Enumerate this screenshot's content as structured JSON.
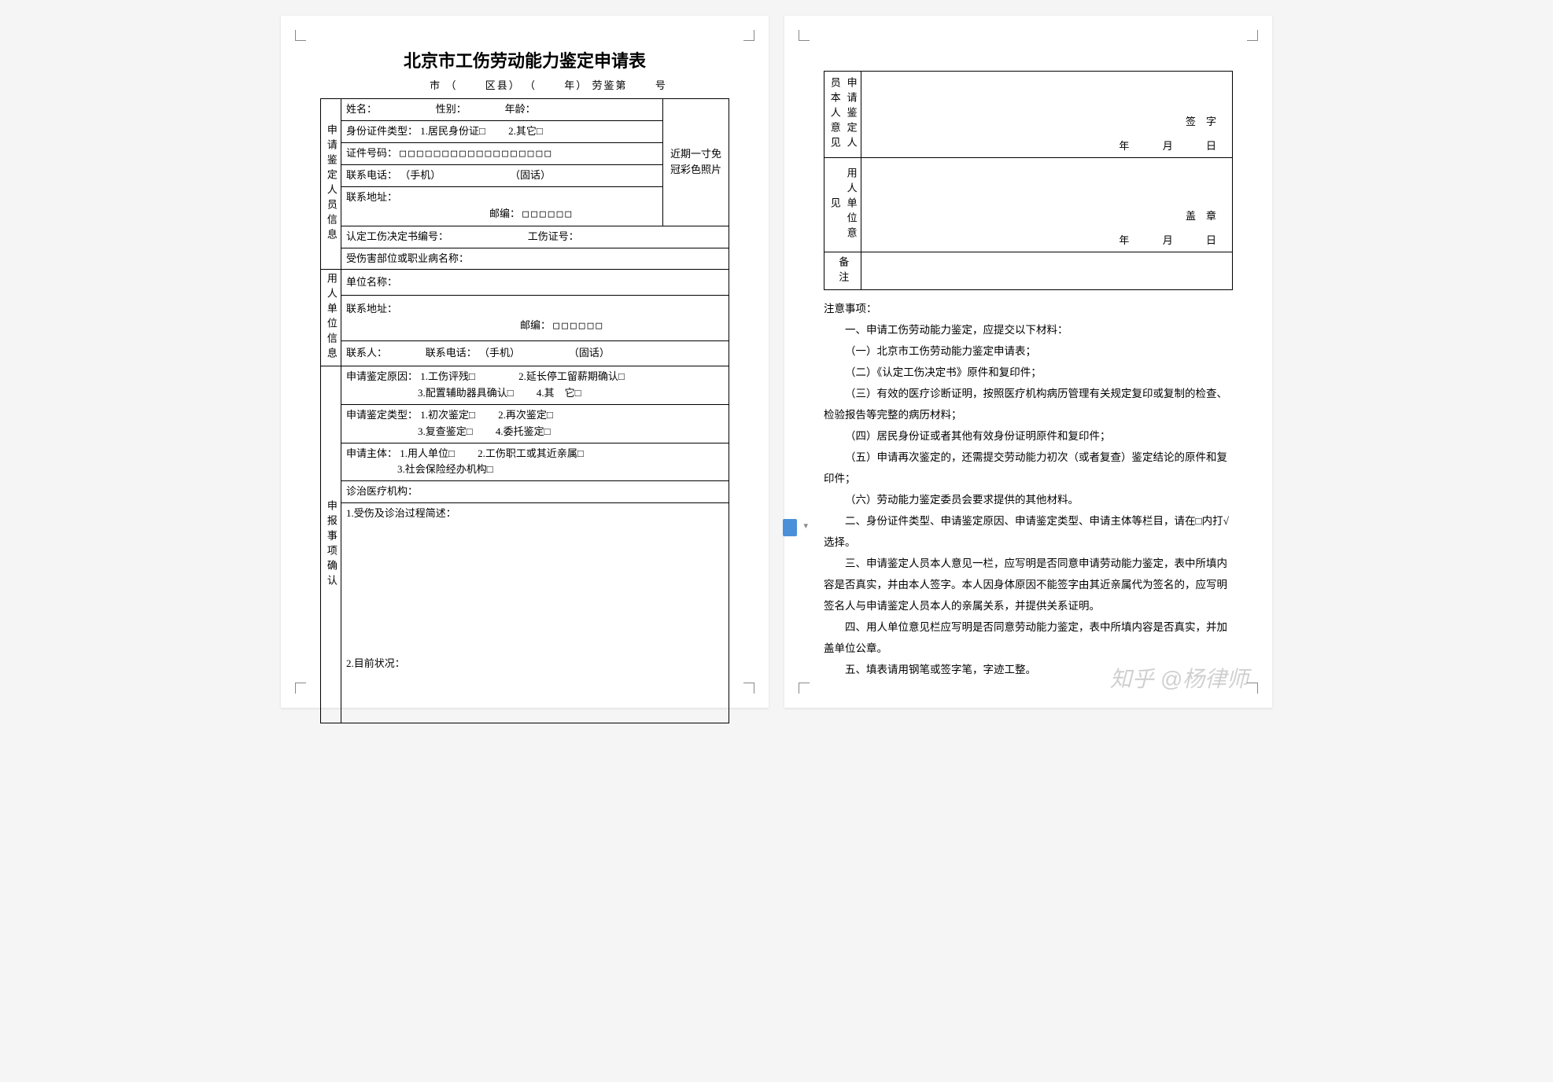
{
  "title": "北京市工伤劳动能力鉴定申请表",
  "subtitle_parts": {
    "city": "市",
    "p1": "（",
    "district": "区县）",
    "p2": "（",
    "year": "年）",
    "prefix": "劳鉴第",
    "suffix": "号"
  },
  "photo_text": "近期一寸免冠彩色照片",
  "section_labels": {
    "applicant": "申请鉴定人员信息",
    "employer": "用人单位信息",
    "matters": "申报事项确认",
    "applicant_opinion": "申请鉴定人员本人意见",
    "employer_opinion": "用人单位意见",
    "remarks": "备注"
  },
  "fields": {
    "name": "姓名：",
    "gender": "性别：",
    "age": "年龄：",
    "id_type": "身份证件类型：",
    "id_opt1": "1.居民身份证□",
    "id_opt2": "2.其它□",
    "id_no": "证件号码：",
    "id_boxes": "□□□□□□□□□□□□□□□□□□",
    "phone": "联系电话：",
    "mobile": "（手机）",
    "landline": "（固话）",
    "address": "联系地址：",
    "zip": "邮编：",
    "zip_boxes": "□□□□□□",
    "decision_no": "认定工伤决定书编号：",
    "cert_no": "工伤证号：",
    "injury_part": "受伤害部位或职业病名称：",
    "emp_name": "单位名称：",
    "emp_addr": "联系地址：",
    "emp_contact": "联系人：",
    "emp_phone_lbl": "联系电话：",
    "reason": "申请鉴定原因：",
    "r1": "1.工伤评残□",
    "r2": "2.延长停工留薪期确认□",
    "r3": "3.配置辅助器具确认□",
    "r4": "4.其　它□",
    "type": "申请鉴定类型：",
    "t1": "1.初次鉴定□",
    "t2": "2.再次鉴定□",
    "t3": "3.复查鉴定□",
    "t4": "4.委托鉴定□",
    "subject": "申请主体：",
    "s1": "1.用人单位□",
    "s2": "2.工伤职工或其近亲属□",
    "s3": "3.社会保险经办机构□",
    "hospital": "诊治医疗机构：",
    "desc1": "1.受伤及诊治过程简述：",
    "desc2": "2.目前状况：",
    "sign": "签　字",
    "seal": "盖　章",
    "date_y": "年",
    "date_m": "月",
    "date_d": "日"
  },
  "notes_title": "注意事项：",
  "notes": [
    "一、申请工伤劳动能力鉴定，应提交以下材料：",
    "（一）北京市工伤劳动能力鉴定申请表；",
    "（二）《认定工伤决定书》原件和复印件；",
    "（三）有效的医疗诊断证明，按照医疗机构病历管理有关规定复印或复制的检查、检验报告等完整的病历材料；",
    "（四）居民身份证或者其他有效身份证明原件和复印件；",
    "（五）申请再次鉴定的，还需提交劳动能力初次（或者复查）鉴定结论的原件和复印件；",
    "（六）劳动能力鉴定委员会要求提供的其他材料。",
    "二、身份证件类型、申请鉴定原因、申请鉴定类型、申请主体等栏目，请在□内打√选择。",
    "三、申请鉴定人员本人意见一栏，应写明是否同意申请劳动能力鉴定，表中所填内容是否真实，并由本人签字。本人因身体原因不能签字由其近亲属代为签名的，应写明签名人与申请鉴定人员本人的亲属关系，并提供关系证明。",
    "四、用人单位意见栏应写明是否同意劳动能力鉴定，表中所填内容是否真实，并加盖单位公章。",
    "五、填表请用钢笔或签字笔，字迹工整。"
  ],
  "watermark": "知乎 @杨律师"
}
